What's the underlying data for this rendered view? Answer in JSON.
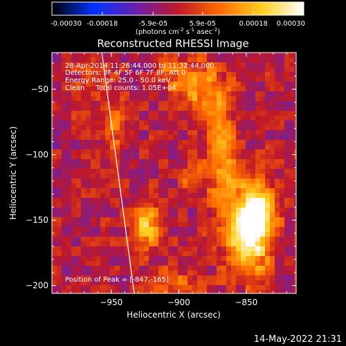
{
  "colorbar": {
    "ticks": [
      "-0.00030",
      "-0.00018",
      "-5.9e-05",
      "5.9e-05",
      "0.00018",
      "0.00030"
    ],
    "tick_values": [
      -0.0003,
      -0.00018,
      -5.9e-05,
      5.9e-05,
      0.00018,
      0.0003
    ],
    "unit_parts": [
      "(photons cm",
      "-2",
      " s",
      "-1",
      " asec",
      "-2",
      ")"
    ],
    "range": [
      -0.0003,
      0.0003
    ]
  },
  "chart_data": {
    "type": "heatmap",
    "title": "Reconstructed RHESSI Image",
    "xlabel": "Heliocentric X (arcsec)",
    "ylabel": "Heliocentric Y (arcsec)",
    "xlim": [
      -994,
      -813
    ],
    "ylim": [
      -206,
      -22
    ],
    "xticks": [
      -950,
      -900,
      -850
    ],
    "xtick_labels": [
      "−950",
      "−900",
      "−850"
    ],
    "yticks": [
      -50,
      -100,
      -150,
      -200
    ],
    "ytick_labels": [
      "−50",
      "−100",
      "−150",
      "−200"
    ],
    "grid": false,
    "colormap": [
      "#000000",
      "#0033ff",
      "#6a1fb0",
      "#c01828",
      "#ff6a00",
      "#ffd020",
      "#ffffff"
    ],
    "annotations": [
      "28-Apr-2014 11:26:44.000 to 11:32:44.000",
      "Detectors: 3F 4F 5F 6F 7F 8F, Att 0",
      "Energy Range: 25.0 - 50.0 keV",
      "Clean     Total counts: 1.05E+04"
    ],
    "peak_label": "Position of Peak = [-847,-165]",
    "peak": {
      "x": -847,
      "y": -165,
      "value": 0.0003
    },
    "sources": [
      {
        "x": -848,
        "y": -160,
        "sx": 11,
        "sy": 22,
        "amp": 0.00034
      },
      {
        "x": -840,
        "y": -140,
        "sx": 9,
        "sy": 12,
        "amp": 0.00018
      },
      {
        "x": -868,
        "y": -100,
        "sx": 8,
        "sy": 30,
        "amp": 0.00016
      },
      {
        "x": -880,
        "y": -55,
        "sx": 9,
        "sy": 16,
        "amp": 0.00015
      },
      {
        "x": -900,
        "y": -40,
        "sx": 11,
        "sy": 10,
        "amp": 0.00012
      },
      {
        "x": -925,
        "y": -155,
        "sx": 8,
        "sy": 12,
        "amp": 0.00022
      },
      {
        "x": -948,
        "y": -75,
        "sx": 6,
        "sy": 14,
        "amp": 0.00014
      },
      {
        "x": -965,
        "y": -40,
        "sx": 7,
        "sy": 7,
        "amp": 0.0001
      },
      {
        "x": -890,
        "y": -118,
        "sx": 6,
        "sy": 9,
        "amp": 0.00012
      },
      {
        "x": -900,
        "y": -200,
        "sx": 12,
        "sy": 10,
        "amp": 0.0001
      }
    ],
    "limb_arc": [
      [
        -957,
        -22
      ],
      [
        -943,
        -130
      ],
      [
        -933,
        -206
      ]
    ]
  },
  "date_stamp": "14-May-2022 21:31"
}
